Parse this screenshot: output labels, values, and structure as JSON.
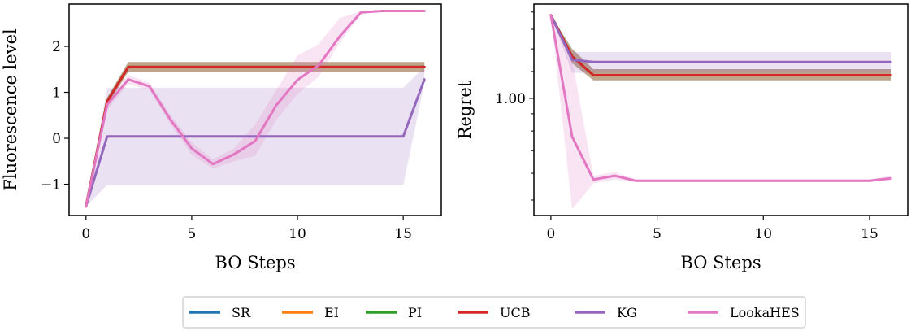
{
  "chart_data": [
    {
      "type": "line",
      "xlabel": "BO Steps",
      "ylabel": "Fluorescence level",
      "xlim": [
        -0.8,
        16.8
      ],
      "ylim": [
        -1.68,
        2.92
      ],
      "xticks": [
        0,
        5,
        10,
        15
      ],
      "yticks": [
        -1,
        0,
        1,
        2
      ],
      "tick_labels_y": [
        "−1",
        "0",
        "1",
        "2"
      ],
      "series": [
        {
          "name": "SR",
          "color": "#1f77b4",
          "x": [
            0,
            1,
            2,
            3,
            4,
            5,
            6,
            7,
            8,
            9,
            10,
            11,
            12,
            13,
            14,
            15,
            16
          ],
          "mean": [
            -1.48,
            0.8,
            1.55,
            1.55,
            1.55,
            1.55,
            1.55,
            1.55,
            1.55,
            1.55,
            1.55,
            1.55,
            1.55,
            1.55,
            1.55,
            1.55,
            1.55
          ],
          "lower": [
            -1.48,
            0.72,
            1.45,
            1.45,
            1.45,
            1.45,
            1.45,
            1.45,
            1.45,
            1.45,
            1.45,
            1.45,
            1.45,
            1.45,
            1.45,
            1.45,
            1.45
          ],
          "upper": [
            -1.48,
            0.88,
            1.66,
            1.66,
            1.66,
            1.66,
            1.66,
            1.66,
            1.66,
            1.66,
            1.66,
            1.66,
            1.66,
            1.66,
            1.66,
            1.66,
            1.66
          ]
        },
        {
          "name": "EI",
          "color": "#ff7f0e",
          "x": [
            0,
            1,
            2,
            3,
            4,
            5,
            6,
            7,
            8,
            9,
            10,
            11,
            12,
            13,
            14,
            15,
            16
          ],
          "mean": [
            -1.48,
            0.8,
            1.55,
            1.55,
            1.55,
            1.55,
            1.55,
            1.55,
            1.55,
            1.55,
            1.55,
            1.55,
            1.55,
            1.55,
            1.55,
            1.55,
            1.55
          ],
          "lower": [
            -1.48,
            0.72,
            1.45,
            1.45,
            1.45,
            1.45,
            1.45,
            1.45,
            1.45,
            1.45,
            1.45,
            1.45,
            1.45,
            1.45,
            1.45,
            1.45,
            1.45
          ],
          "upper": [
            -1.48,
            0.88,
            1.66,
            1.66,
            1.66,
            1.66,
            1.66,
            1.66,
            1.66,
            1.66,
            1.66,
            1.66,
            1.66,
            1.66,
            1.66,
            1.66,
            1.66
          ]
        },
        {
          "name": "PI",
          "color": "#2ca02c",
          "x": [
            0,
            1,
            2,
            3,
            4,
            5,
            6,
            7,
            8,
            9,
            10,
            11,
            12,
            13,
            14,
            15,
            16
          ],
          "mean": [
            -1.48,
            0.8,
            1.55,
            1.55,
            1.55,
            1.55,
            1.55,
            1.55,
            1.55,
            1.55,
            1.55,
            1.55,
            1.55,
            1.55,
            1.55,
            1.55,
            1.55
          ],
          "lower": [
            -1.48,
            0.72,
            1.45,
            1.45,
            1.45,
            1.45,
            1.45,
            1.45,
            1.45,
            1.45,
            1.45,
            1.45,
            1.45,
            1.45,
            1.45,
            1.45,
            1.45
          ],
          "upper": [
            -1.48,
            0.88,
            1.66,
            1.66,
            1.66,
            1.66,
            1.66,
            1.66,
            1.66,
            1.66,
            1.66,
            1.66,
            1.66,
            1.66,
            1.66,
            1.66,
            1.66
          ]
        },
        {
          "name": "UCB",
          "color": "#d62728",
          "x": [
            0,
            1,
            2,
            3,
            4,
            5,
            6,
            7,
            8,
            9,
            10,
            11,
            12,
            13,
            14,
            15,
            16
          ],
          "mean": [
            -1.48,
            0.8,
            1.55,
            1.55,
            1.55,
            1.55,
            1.55,
            1.55,
            1.55,
            1.55,
            1.55,
            1.55,
            1.55,
            1.55,
            1.55,
            1.55,
            1.55
          ],
          "lower": [
            -1.48,
            0.72,
            1.45,
            1.45,
            1.45,
            1.45,
            1.45,
            1.45,
            1.45,
            1.45,
            1.45,
            1.45,
            1.45,
            1.45,
            1.45,
            1.45,
            1.45
          ],
          "upper": [
            -1.48,
            0.88,
            1.66,
            1.66,
            1.66,
            1.66,
            1.66,
            1.66,
            1.66,
            1.66,
            1.66,
            1.66,
            1.66,
            1.66,
            1.66,
            1.66,
            1.66
          ]
        },
        {
          "name": "KG",
          "color": "#9467bd",
          "x": [
            0,
            1,
            2,
            3,
            4,
            5,
            6,
            7,
            8,
            9,
            10,
            11,
            12,
            13,
            14,
            15,
            16
          ],
          "mean": [
            -1.48,
            0.04,
            0.04,
            0.04,
            0.04,
            0.04,
            0.04,
            0.04,
            0.04,
            0.04,
            0.04,
            0.04,
            0.04,
            0.04,
            0.04,
            0.04,
            1.28
          ],
          "lower": [
            -1.48,
            -1.02,
            -1.02,
            -1.02,
            -1.02,
            -1.02,
            -1.02,
            -1.02,
            -1.02,
            -1.02,
            -1.02,
            -1.02,
            -1.02,
            -1.02,
            -1.02,
            -1.02,
            1.2
          ],
          "upper": [
            -1.48,
            1.1,
            1.1,
            1.1,
            1.1,
            1.1,
            1.1,
            1.1,
            1.1,
            1.1,
            1.1,
            1.1,
            1.1,
            1.1,
            1.1,
            1.1,
            1.55
          ]
        },
        {
          "name": "LookaHES",
          "color": "#e377c2",
          "x": [
            0,
            1,
            2,
            3,
            4,
            5,
            6,
            7,
            8,
            9,
            10,
            11,
            12,
            13,
            14,
            15,
            16
          ],
          "mean": [
            -1.48,
            0.73,
            1.28,
            1.13,
            0.4,
            -0.22,
            -0.56,
            -0.35,
            -0.06,
            0.72,
            1.27,
            1.59,
            2.22,
            2.74,
            2.77,
            2.77,
            2.77
          ],
          "lower": [
            -1.48,
            0.62,
            1.18,
            1.05,
            0.3,
            -0.36,
            -0.66,
            -0.5,
            -0.38,
            0.4,
            0.96,
            1.34,
            2.08,
            2.7,
            2.75,
            2.75,
            2.75
          ],
          "upper": [
            -1.48,
            0.84,
            1.38,
            1.21,
            0.5,
            -0.08,
            -0.46,
            -0.22,
            0.3,
            1.05,
            1.8,
            2.05,
            2.62,
            2.76,
            2.78,
            2.78,
            2.78
          ]
        }
      ]
    },
    {
      "type": "line",
      "xlabel": "BO Steps",
      "ylabel": "Regret",
      "yscale": "log",
      "xlim": [
        -0.8,
        16.8
      ],
      "ylim": [
        0.45,
        1.9
      ],
      "xticks": [
        0,
        5,
        10,
        15
      ],
      "yticks": [
        1.0
      ],
      "tick_labels_y": [
        "1.00"
      ],
      "series": [
        {
          "name": "SR",
          "color": "#1f77b4",
          "x": [
            0,
            1,
            2,
            3,
            4,
            5,
            6,
            7,
            8,
            9,
            10,
            11,
            12,
            13,
            14,
            15,
            16
          ],
          "mean": [
            1.76,
            1.33,
            1.17,
            1.17,
            1.17,
            1.17,
            1.17,
            1.17,
            1.17,
            1.17,
            1.17,
            1.17,
            1.17,
            1.17,
            1.17,
            1.17,
            1.17
          ],
          "lower": [
            1.76,
            1.27,
            1.13,
            1.13,
            1.13,
            1.13,
            1.13,
            1.13,
            1.13,
            1.13,
            1.13,
            1.13,
            1.13,
            1.13,
            1.13,
            1.13,
            1.13
          ],
          "upper": [
            1.76,
            1.4,
            1.22,
            1.22,
            1.22,
            1.22,
            1.22,
            1.22,
            1.22,
            1.22,
            1.22,
            1.22,
            1.22,
            1.22,
            1.22,
            1.22,
            1.22
          ]
        },
        {
          "name": "EI",
          "color": "#ff7f0e",
          "x": [
            0,
            1,
            2,
            3,
            4,
            5,
            6,
            7,
            8,
            9,
            10,
            11,
            12,
            13,
            14,
            15,
            16
          ],
          "mean": [
            1.76,
            1.33,
            1.17,
            1.17,
            1.17,
            1.17,
            1.17,
            1.17,
            1.17,
            1.17,
            1.17,
            1.17,
            1.17,
            1.17,
            1.17,
            1.17,
            1.17
          ],
          "lower": [
            1.76,
            1.27,
            1.13,
            1.13,
            1.13,
            1.13,
            1.13,
            1.13,
            1.13,
            1.13,
            1.13,
            1.13,
            1.13,
            1.13,
            1.13,
            1.13,
            1.13
          ],
          "upper": [
            1.76,
            1.4,
            1.22,
            1.22,
            1.22,
            1.22,
            1.22,
            1.22,
            1.22,
            1.22,
            1.22,
            1.22,
            1.22,
            1.22,
            1.22,
            1.22,
            1.22
          ]
        },
        {
          "name": "PI",
          "color": "#2ca02c",
          "x": [
            0,
            1,
            2,
            3,
            4,
            5,
            6,
            7,
            8,
            9,
            10,
            11,
            12,
            13,
            14,
            15,
            16
          ],
          "mean": [
            1.76,
            1.33,
            1.17,
            1.17,
            1.17,
            1.17,
            1.17,
            1.17,
            1.17,
            1.17,
            1.17,
            1.17,
            1.17,
            1.17,
            1.17,
            1.17,
            1.17
          ],
          "lower": [
            1.76,
            1.27,
            1.13,
            1.13,
            1.13,
            1.13,
            1.13,
            1.13,
            1.13,
            1.13,
            1.13,
            1.13,
            1.13,
            1.13,
            1.13,
            1.13,
            1.13
          ],
          "upper": [
            1.76,
            1.4,
            1.22,
            1.22,
            1.22,
            1.22,
            1.22,
            1.22,
            1.22,
            1.22,
            1.22,
            1.22,
            1.22,
            1.22,
            1.22,
            1.22,
            1.22
          ]
        },
        {
          "name": "UCB",
          "color": "#d62728",
          "x": [
            0,
            1,
            2,
            3,
            4,
            5,
            6,
            7,
            8,
            9,
            10,
            11,
            12,
            13,
            14,
            15,
            16
          ],
          "mean": [
            1.76,
            1.33,
            1.17,
            1.17,
            1.17,
            1.17,
            1.17,
            1.17,
            1.17,
            1.17,
            1.17,
            1.17,
            1.17,
            1.17,
            1.17,
            1.17,
            1.17
          ],
          "lower": [
            1.76,
            1.27,
            1.13,
            1.13,
            1.13,
            1.13,
            1.13,
            1.13,
            1.13,
            1.13,
            1.13,
            1.13,
            1.13,
            1.13,
            1.13,
            1.13,
            1.13
          ],
          "upper": [
            1.76,
            1.4,
            1.22,
            1.22,
            1.22,
            1.22,
            1.22,
            1.22,
            1.22,
            1.22,
            1.22,
            1.22,
            1.22,
            1.22,
            1.22,
            1.22,
            1.22
          ]
        },
        {
          "name": "KG",
          "color": "#9467bd",
          "x": [
            0,
            1,
            2,
            3,
            4,
            5,
            6,
            7,
            8,
            9,
            10,
            11,
            12,
            13,
            14,
            15,
            16
          ],
          "mean": [
            1.76,
            1.3,
            1.28,
            1.28,
            1.28,
            1.28,
            1.28,
            1.28,
            1.28,
            1.28,
            1.28,
            1.28,
            1.28,
            1.28,
            1.28,
            1.28,
            1.28
          ],
          "lower": [
            1.76,
            1.19,
            1.19,
            1.19,
            1.19,
            1.19,
            1.19,
            1.19,
            1.19,
            1.19,
            1.19,
            1.19,
            1.19,
            1.19,
            1.19,
            1.19,
            1.19
          ],
          "upper": [
            1.76,
            1.37,
            1.37,
            1.37,
            1.37,
            1.37,
            1.37,
            1.37,
            1.37,
            1.37,
            1.37,
            1.37,
            1.37,
            1.37,
            1.37,
            1.37,
            1.37
          ]
        },
        {
          "name": "LookaHES",
          "color": "#e377c2",
          "x": [
            0,
            1,
            2,
            3,
            4,
            5,
            6,
            7,
            8,
            9,
            10,
            11,
            12,
            13,
            14,
            15,
            16
          ],
          "mean": [
            1.76,
            0.77,
            0.575,
            0.59,
            0.57,
            0.57,
            0.57,
            0.57,
            0.57,
            0.57,
            0.57,
            0.57,
            0.57,
            0.57,
            0.57,
            0.57,
            0.58
          ],
          "lower": [
            1.76,
            0.47,
            0.56,
            0.575,
            0.565,
            0.565,
            0.565,
            0.565,
            0.565,
            0.565,
            0.565,
            0.565,
            0.565,
            0.565,
            0.565,
            0.565,
            0.57
          ],
          "upper": [
            1.76,
            1.3,
            0.59,
            0.605,
            0.575,
            0.575,
            0.575,
            0.575,
            0.575,
            0.575,
            0.575,
            0.575,
            0.575,
            0.575,
            0.575,
            0.575,
            0.59
          ]
        }
      ]
    }
  ],
  "legend": {
    "entries": [
      {
        "name": "SR",
        "color": "#1f77b4"
      },
      {
        "name": "EI",
        "color": "#ff7f0e"
      },
      {
        "name": "PI",
        "color": "#2ca02c"
      },
      {
        "name": "UCB",
        "color": "#d62728"
      },
      {
        "name": "KG",
        "color": "#9467bd"
      },
      {
        "name": "LookaHES",
        "color": "#e377c2"
      }
    ],
    "placement": "bottom-center"
  }
}
